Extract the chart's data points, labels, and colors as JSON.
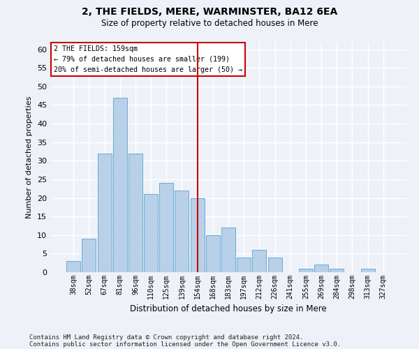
{
  "title": "2, THE FIELDS, MERE, WARMINSTER, BA12 6EA",
  "subtitle": "Size of property relative to detached houses in Mere",
  "xlabel": "Distribution of detached houses by size in Mere",
  "ylabel": "Number of detached properties",
  "categories": [
    "38sqm",
    "52sqm",
    "67sqm",
    "81sqm",
    "96sqm",
    "110sqm",
    "125sqm",
    "139sqm",
    "154sqm",
    "168sqm",
    "183sqm",
    "197sqm",
    "212sqm",
    "226sqm",
    "241sqm",
    "255sqm",
    "269sqm",
    "284sqm",
    "298sqm",
    "313sqm",
    "327sqm"
  ],
  "values": [
    3,
    9,
    32,
    47,
    32,
    21,
    24,
    22,
    20,
    10,
    12,
    4,
    6,
    4,
    0,
    1,
    2,
    1,
    0,
    1,
    0
  ],
  "bar_color": "#b8d0e8",
  "bar_edge_color": "#6aaad4",
  "background_color": "#eef2f8",
  "grid_color": "#ffffff",
  "ylim": [
    0,
    62
  ],
  "yticks": [
    0,
    5,
    10,
    15,
    20,
    25,
    30,
    35,
    40,
    45,
    50,
    55,
    60
  ],
  "annotation_line_label": "2 THE FIELDS: 159sqm",
  "annotation_text1": "← 79% of detached houses are smaller (199)",
  "annotation_text2": "20% of semi-detached houses are larger (50) →",
  "annotation_box_color": "#ffffff",
  "annotation_box_edge": "#cc0000",
  "vline_color": "#cc0000",
  "vline_x_index": 8,
  "footer1": "Contains HM Land Registry data © Crown copyright and database right 2024.",
  "footer2": "Contains public sector information licensed under the Open Government Licence v3.0."
}
